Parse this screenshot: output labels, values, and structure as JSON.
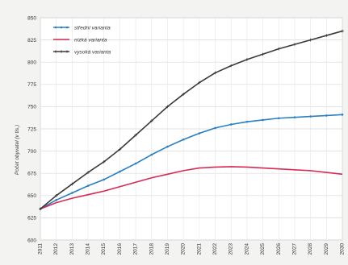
{
  "chart_data": {
    "type": "line",
    "title": "",
    "xlabel": "",
    "ylabel": "Počet obyvatel (v tis.)",
    "x": [
      "2011",
      "2012",
      "2013",
      "2014",
      "2015",
      "2016",
      "2017",
      "2018",
      "2019",
      "2020",
      "2021",
      "2022",
      "2023",
      "2024",
      "2025",
      "2026",
      "2027",
      "2028",
      "2029",
      "2030"
    ],
    "ylim": [
      600,
      850
    ],
    "yticks": [
      600,
      625,
      650,
      675,
      700,
      725,
      750,
      775,
      800,
      825,
      850
    ],
    "grid": true,
    "legend_position": "top-left",
    "series": [
      {
        "name": "střední varianta",
        "color": "#2a7fc0",
        "marker": "dot",
        "values": [
          635,
          645,
          653,
          661,
          668,
          677,
          686,
          696,
          705,
          713,
          720,
          726,
          730,
          733,
          735,
          737,
          738,
          739,
          740,
          741
        ]
      },
      {
        "name": "nízká varianta",
        "color": "#d62a55",
        "marker": "none",
        "values": [
          635,
          642,
          647,
          651,
          655,
          660,
          665,
          670,
          674,
          678,
          681,
          682,
          682.5,
          682,
          681,
          680,
          679,
          678,
          676,
          674
        ]
      },
      {
        "name": "vysoká varianta",
        "color": "#3a3a3a",
        "marker": "plus",
        "values": [
          635,
          650,
          663,
          676,
          688,
          702,
          718,
          734,
          750,
          764,
          777,
          788,
          796,
          803,
          809,
          815,
          820,
          825,
          830,
          835
        ]
      }
    ]
  }
}
